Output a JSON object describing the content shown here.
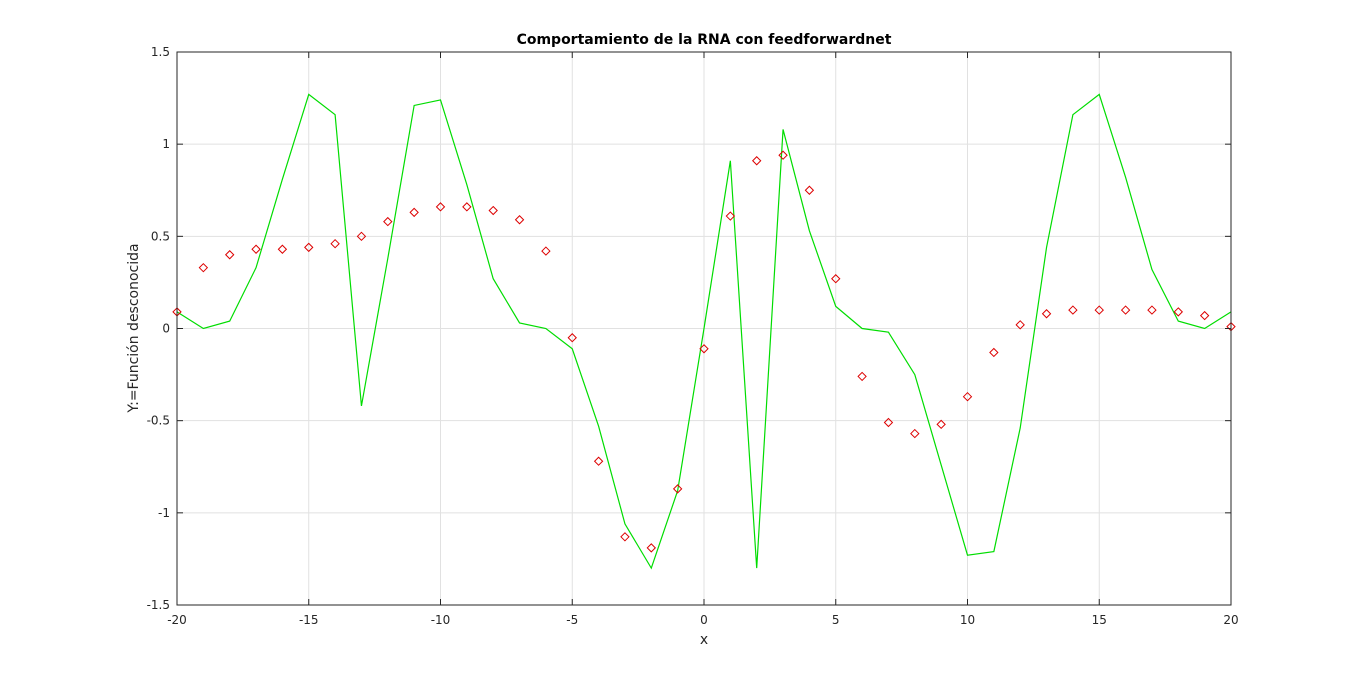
{
  "chart_data": {
    "type": "line",
    "title": "Comportamiento de la RNA con feedforwardnet",
    "xlabel": "x",
    "ylabel": "Y:=Función desconocida",
    "xlim": [
      -20,
      20
    ],
    "ylim": [
      -1.5,
      1.5
    ],
    "xticks": [
      -20,
      -15,
      -10,
      -5,
      0,
      5,
      10,
      15,
      20
    ],
    "yticks": [
      -1.5,
      -1,
      -0.5,
      0,
      0.5,
      1,
      1.5
    ],
    "xtick_labels": [
      "-20",
      "-15",
      "-10",
      "-5",
      "0",
      "5",
      "10",
      "15",
      "20"
    ],
    "ytick_labels": [
      "-1.5",
      "-1",
      "-0.5",
      "0",
      "0.5",
      "1",
      "1.5"
    ],
    "grid": true,
    "series": [
      {
        "style": "line",
        "color": "#00dd00",
        "x": [
          -20,
          -19,
          -18,
          -17,
          -16,
          -15,
          -14,
          -13,
          -12,
          -11,
          -10,
          -9,
          -8,
          -7,
          -6,
          -5,
          -4,
          -3,
          -2,
          -1,
          0,
          1,
          2,
          3,
          4,
          5,
          6,
          7,
          8,
          9,
          10,
          11,
          12,
          13,
          14,
          15,
          16,
          17,
          18,
          19,
          20
        ],
        "y": [
          0.09,
          0.0,
          0.04,
          0.33,
          0.81,
          1.27,
          1.16,
          -0.42,
          0.38,
          1.21,
          1.24,
          0.78,
          0.27,
          0.03,
          0.0,
          -0.11,
          -0.53,
          -1.06,
          -1.3,
          -0.88,
          0.0,
          0.91,
          -1.3,
          1.08,
          0.53,
          0.12,
          0.0,
          -0.02,
          -0.25,
          -0.74,
          -1.23,
          -1.21,
          -0.54,
          0.44,
          1.16,
          1.27,
          0.82,
          0.32,
          0.04,
          0.0,
          0.09
        ]
      },
      {
        "style": "markers",
        "marker": "diamond",
        "color": "#dd0000",
        "x": [
          -20,
          -19,
          -18,
          -17,
          -16,
          -15,
          -14,
          -13,
          -12,
          -11,
          -10,
          -9,
          -8,
          -7,
          -6,
          -5,
          -4,
          -3,
          -2,
          -1,
          0,
          1,
          2,
          3,
          4,
          5,
          6,
          7,
          8,
          9,
          10,
          11,
          12,
          13,
          14,
          15,
          16,
          17,
          18,
          19,
          20
        ],
        "y": [
          0.09,
          0.33,
          0.4,
          0.43,
          0.43,
          0.44,
          0.46,
          0.5,
          0.58,
          0.63,
          0.66,
          0.66,
          0.64,
          0.59,
          0.42,
          -0.05,
          -0.72,
          -1.13,
          -1.19,
          -0.87,
          -0.11,
          0.61,
          0.91,
          0.94,
          0.75,
          0.27,
          -0.26,
          -0.51,
          -0.57,
          -0.52,
          -0.37,
          -0.13,
          0.02,
          0.08,
          0.1,
          0.1,
          0.1,
          0.1,
          0.09,
          0.07,
          0.01
        ]
      }
    ]
  }
}
